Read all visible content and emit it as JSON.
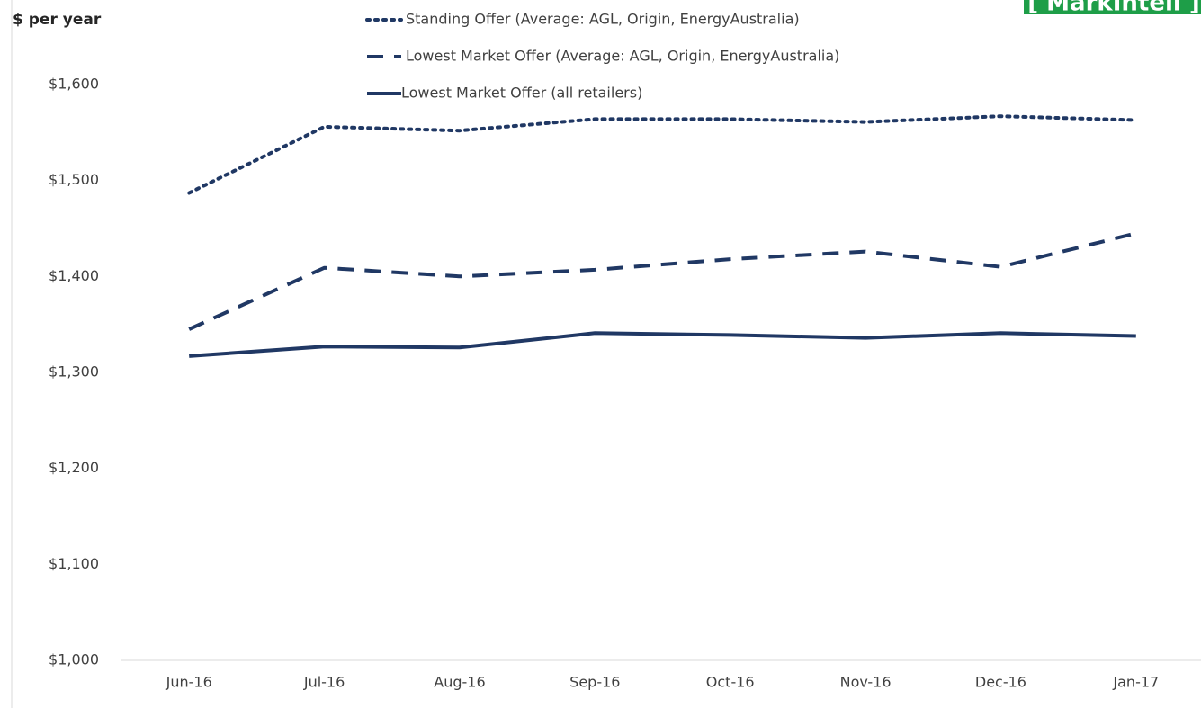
{
  "chart_data": {
    "type": "line",
    "y_label": "$ per year",
    "logo": "[ MarkIntell ]",
    "categories": [
      "Jun-16",
      "Jul-16",
      "Aug-16",
      "Sep-16",
      "Oct-16",
      "Nov-16",
      "Dec-16",
      "Jan-17"
    ],
    "ylim": [
      1000,
      1600
    ],
    "yticks": [
      {
        "value": 1000,
        "label": "$1,000"
      },
      {
        "value": 1100,
        "label": "$1,100"
      },
      {
        "value": 1200,
        "label": "$1,200"
      },
      {
        "value": 1300,
        "label": "$1,300"
      },
      {
        "value": 1400,
        "label": "$1,400"
      },
      {
        "value": 1500,
        "label": "$1,500"
      },
      {
        "value": 1600,
        "label": "$1,600"
      }
    ],
    "grid": false,
    "series": [
      {
        "name": "Standing Offer (Average: AGL, Origin, EnergyAustralia)",
        "color": "#203864",
        "style": "dotted",
        "values": [
          1487,
          1556,
          1552,
          1564,
          1564,
          1561,
          1567,
          1563
        ]
      },
      {
        "name": "Lowest Market Offer (Average: AGL, Origin, EnergyAustralia)",
        "color": "#203864",
        "style": "dashed",
        "values": [
          1345,
          1409,
          1400,
          1407,
          1418,
          1426,
          1410,
          1445
        ]
      },
      {
        "name": "Lowest Market Offer (all retailers)",
        "color": "#203864",
        "style": "solid",
        "values": [
          1317,
          1327,
          1326,
          1341,
          1339,
          1336,
          1341,
          1338
        ]
      }
    ]
  }
}
